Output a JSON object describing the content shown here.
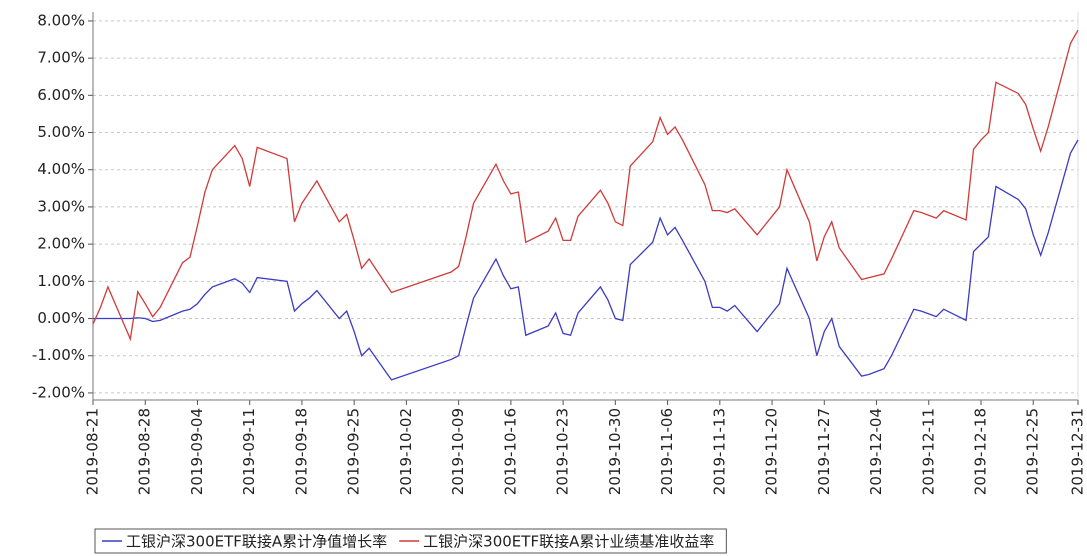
{
  "chart_data": {
    "type": "line",
    "x": [
      "2019-08-21",
      "2019-08-22",
      "2019-08-23",
      "2019-08-26",
      "2019-08-27",
      "2019-08-28",
      "2019-08-29",
      "2019-08-30",
      "2019-09-02",
      "2019-09-03",
      "2019-09-04",
      "2019-09-05",
      "2019-09-06",
      "2019-09-09",
      "2019-09-10",
      "2019-09-11",
      "2019-09-12",
      "2019-09-16",
      "2019-09-17",
      "2019-09-18",
      "2019-09-19",
      "2019-09-20",
      "2019-09-23",
      "2019-09-24",
      "2019-09-25",
      "2019-09-26",
      "2019-09-27",
      "2019-09-30",
      "2019-10-08",
      "2019-10-09",
      "2019-10-10",
      "2019-10-11",
      "2019-10-14",
      "2019-10-15",
      "2019-10-16",
      "2019-10-17",
      "2019-10-18",
      "2019-10-21",
      "2019-10-22",
      "2019-10-23",
      "2019-10-24",
      "2019-10-25",
      "2019-10-28",
      "2019-10-29",
      "2019-10-30",
      "2019-10-31",
      "2019-11-01",
      "2019-11-04",
      "2019-11-05",
      "2019-11-06",
      "2019-11-07",
      "2019-11-08",
      "2019-11-11",
      "2019-11-12",
      "2019-11-13",
      "2019-11-14",
      "2019-11-15",
      "2019-11-18",
      "2019-11-21",
      "2019-11-22",
      "2019-11-25",
      "2019-11-26",
      "2019-11-27",
      "2019-11-28",
      "2019-11-29",
      "2019-12-02",
      "2019-12-03",
      "2019-12-05",
      "2019-12-06",
      "2019-12-09",
      "2019-12-10",
      "2019-12-12",
      "2019-12-13",
      "2019-12-16",
      "2019-12-17",
      "2019-12-18",
      "2019-12-19",
      "2019-12-20",
      "2019-12-23",
      "2019-12-24",
      "2019-12-25",
      "2019-12-26",
      "2019-12-27",
      "2019-12-30",
      "2019-12-31"
    ],
    "series": [
      {
        "name": "工银沪深300ETF联接A累计净值增长率",
        "color": "#3b3bc4",
        "values": [
          0.0,
          0.0,
          0.0,
          0.0,
          0.02,
          0.0,
          -0.08,
          -0.05,
          0.2,
          0.25,
          0.4,
          0.65,
          0.85,
          1.07,
          0.95,
          0.7,
          1.1,
          1.0,
          0.2,
          0.4,
          0.55,
          0.75,
          0.0,
          0.2,
          -0.35,
          -1.0,
          -0.8,
          -1.65,
          -1.1,
          -1.0,
          -0.2,
          0.55,
          1.6,
          1.15,
          0.8,
          0.85,
          -0.45,
          -0.2,
          0.15,
          -0.4,
          -0.45,
          0.15,
          0.85,
          0.5,
          0.0,
          -0.05,
          1.45,
          2.05,
          2.7,
          2.25,
          2.45,
          2.1,
          1.0,
          0.3,
          0.3,
          0.2,
          0.35,
          -0.35,
          0.4,
          1.35,
          0.0,
          -1.0,
          -0.35,
          0.0,
          -0.75,
          -1.55,
          -1.5,
          -1.35,
          -1.0,
          0.25,
          0.2,
          0.05,
          0.25,
          -0.05,
          1.8,
          2.0,
          2.2,
          3.55,
          3.2,
          2.95,
          2.25,
          1.7,
          2.3,
          4.45,
          4.8
        ]
      },
      {
        "name": "工银沪深300ETF联接A累计业绩基准收益率",
        "color": "#d03a3a",
        "values": [
          -0.15,
          0.3,
          0.85,
          -0.55,
          0.72,
          0.4,
          0.05,
          0.3,
          1.5,
          1.65,
          2.5,
          3.4,
          4.0,
          4.65,
          4.3,
          3.55,
          4.6,
          4.3,
          2.6,
          3.1,
          3.4,
          3.7,
          2.6,
          2.8,
          2.1,
          1.35,
          1.6,
          0.7,
          1.25,
          1.4,
          2.2,
          3.1,
          4.15,
          3.7,
          3.35,
          3.4,
          2.05,
          2.35,
          2.7,
          2.1,
          2.1,
          2.75,
          3.45,
          3.1,
          2.6,
          2.5,
          4.1,
          4.75,
          5.4,
          4.95,
          5.15,
          4.8,
          3.6,
          2.9,
          2.9,
          2.85,
          2.95,
          2.25,
          3.0,
          4.0,
          2.6,
          1.55,
          2.2,
          2.6,
          1.9,
          1.05,
          1.1,
          1.2,
          1.6,
          2.9,
          2.85,
          2.7,
          2.9,
          2.65,
          4.55,
          4.8,
          5.0,
          6.35,
          6.05,
          5.75,
          5.1,
          4.5,
          5.15,
          7.4,
          7.75
        ]
      }
    ],
    "xlim": [
      "2019-08-21",
      "2019-12-31"
    ],
    "xticks": [
      "2019-08-21",
      "2019-08-28",
      "2019-09-04",
      "2019-09-11",
      "2019-09-18",
      "2019-09-25",
      "2019-10-02",
      "2019-10-09",
      "2019-10-16",
      "2019-10-23",
      "2019-10-30",
      "2019-11-06",
      "2019-11-13",
      "2019-11-20",
      "2019-11-27",
      "2019-12-04",
      "2019-12-11",
      "2019-12-18",
      "2019-12-25",
      "2019-12-31"
    ],
    "ylim": [
      -2.19,
      8.24
    ],
    "yticks": [
      {
        "value": -2,
        "label": "-2.00%"
      },
      {
        "value": -1,
        "label": "-1.00%"
      },
      {
        "value": 0,
        "label": "0.00%"
      },
      {
        "value": 1,
        "label": "1.00%"
      },
      {
        "value": 2,
        "label": "2.00%"
      },
      {
        "value": 3,
        "label": "3.00%"
      },
      {
        "value": 4,
        "label": "4.00%"
      },
      {
        "value": 5,
        "label": "5.00%"
      },
      {
        "value": 6,
        "label": "6.00%"
      },
      {
        "value": 7,
        "label": "7.00%"
      },
      {
        "value": 8,
        "label": "8.00%"
      }
    ],
    "grid": true,
    "legend": "bottom"
  }
}
